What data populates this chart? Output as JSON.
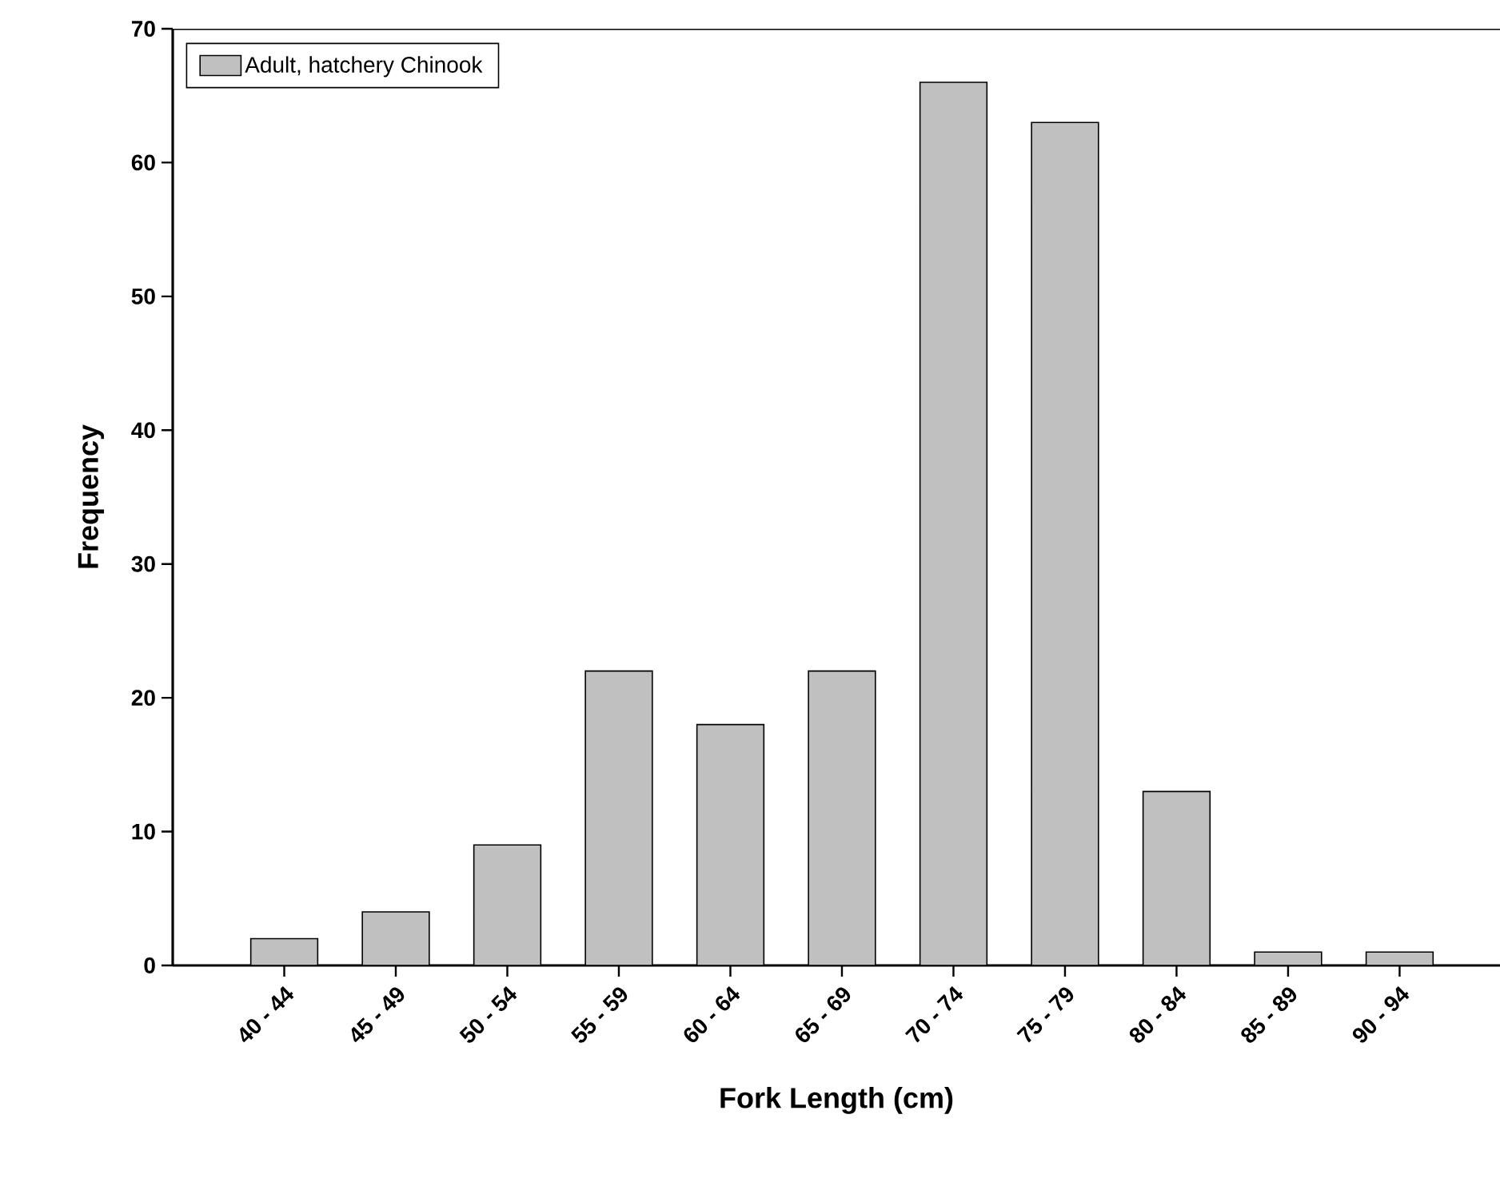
{
  "chart_data": {
    "type": "bar",
    "xlabel": "Fork Length (cm)",
    "ylabel": "Frequency",
    "categories": [
      "40 - 44",
      "45 - 49",
      "50 - 54",
      "55 - 59",
      "60 - 64",
      "65 - 69",
      "70 - 74",
      "75 - 79",
      "80 - 84",
      "85 - 89",
      "90 - 94"
    ],
    "series": [
      {
        "name": "Adult, hatchery Chinook",
        "color": "#c0c0c0",
        "values": [
          2,
          4,
          9,
          22,
          18,
          22,
          66,
          63,
          13,
          1,
          1
        ]
      }
    ],
    "ylim": [
      0,
      70
    ],
    "yticks": [
      0,
      10,
      20,
      30,
      40,
      50,
      60,
      70
    ],
    "legend": "top left",
    "grid": false
  }
}
